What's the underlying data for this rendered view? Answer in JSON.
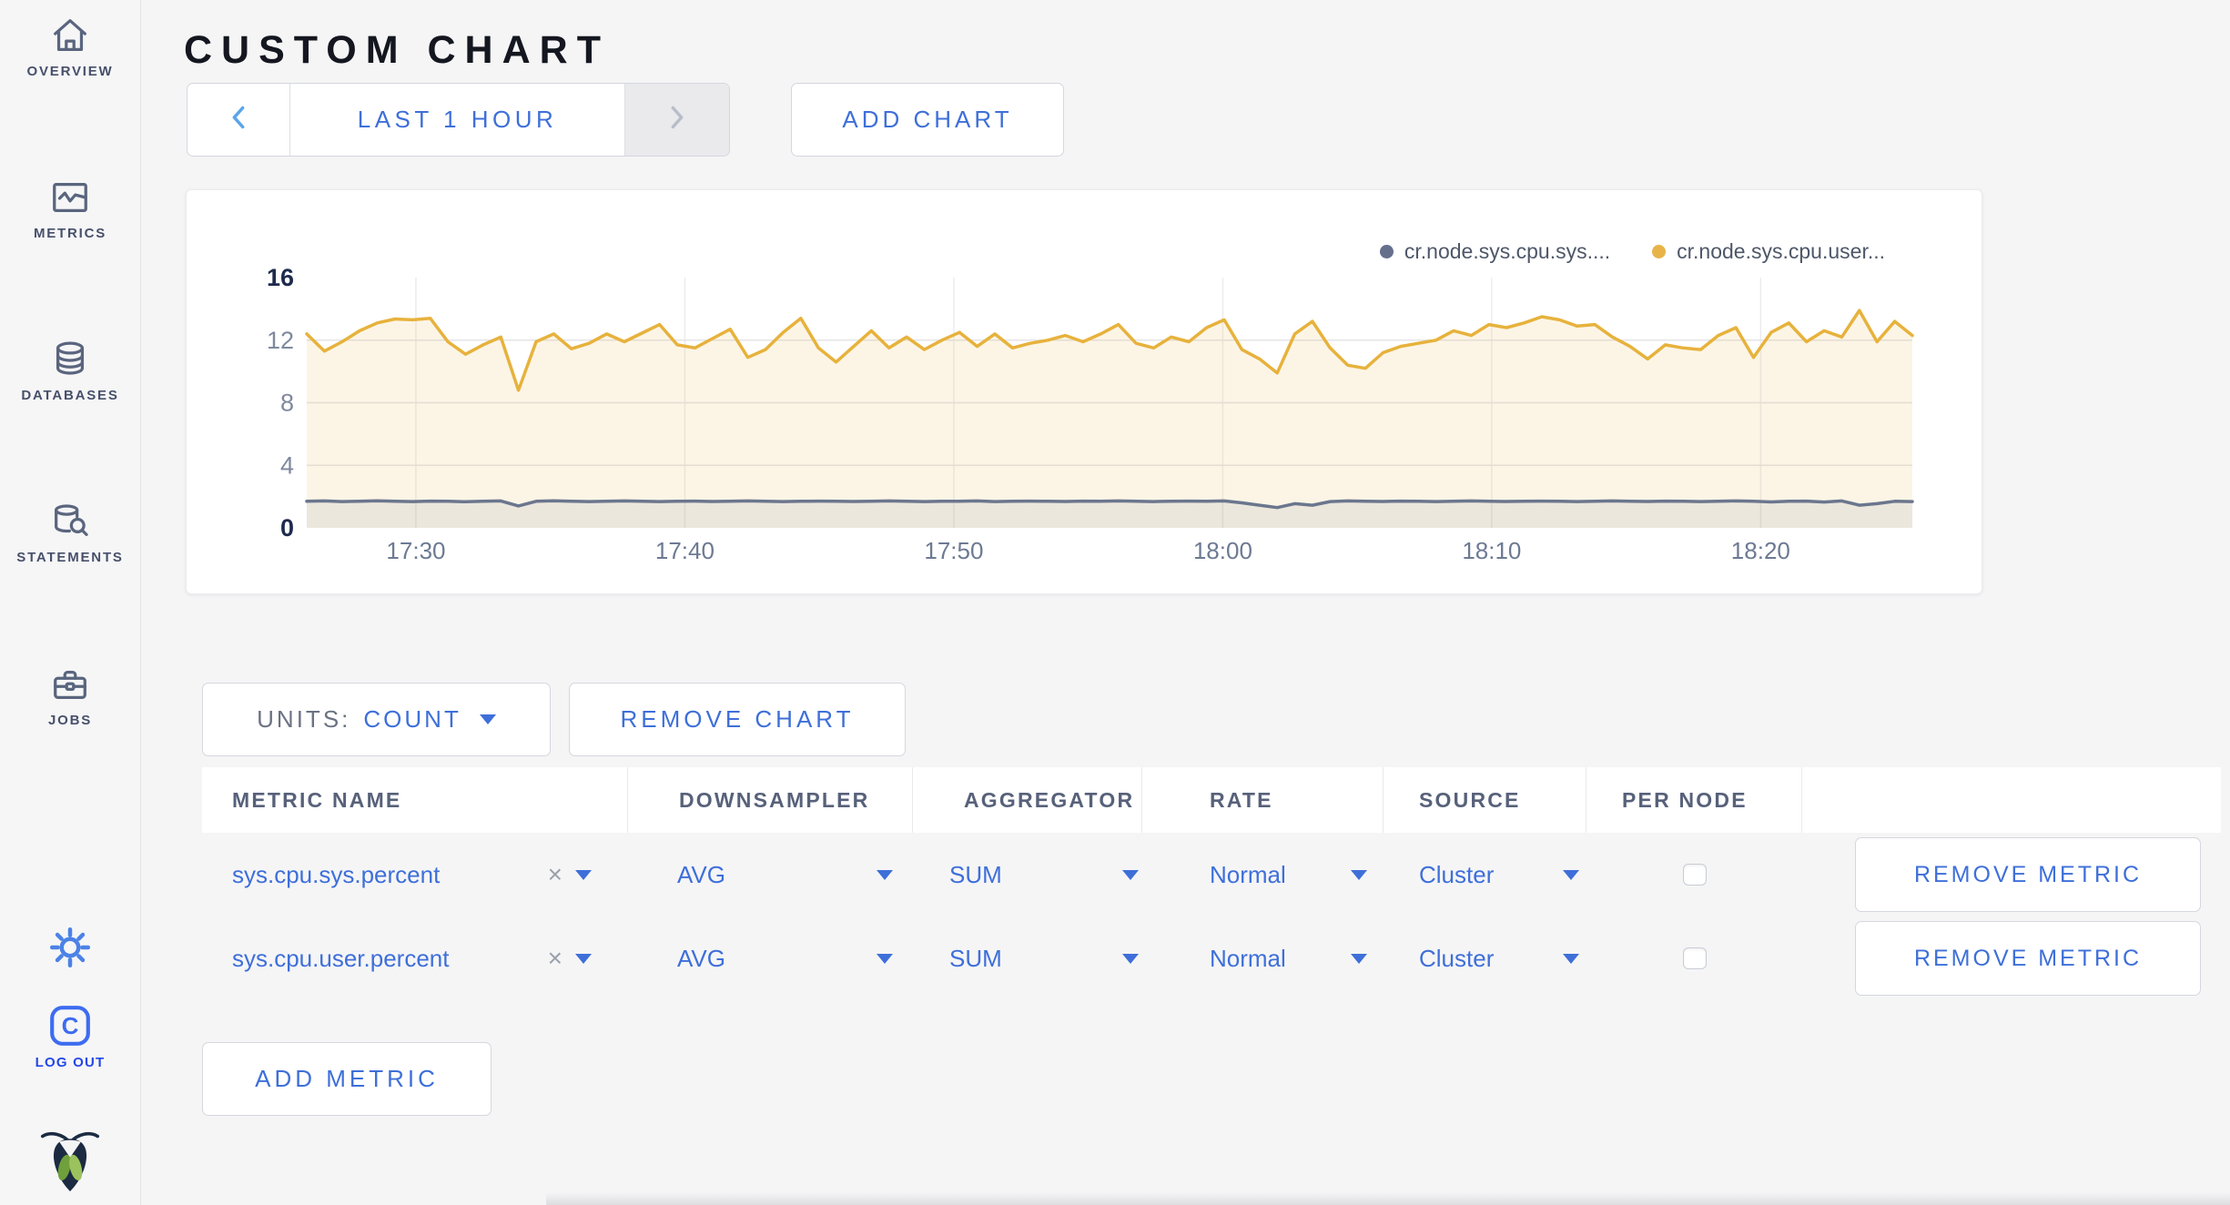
{
  "sidebar": {
    "items": [
      {
        "label": "OVERVIEW",
        "icon": "home-icon"
      },
      {
        "label": "METRICS",
        "icon": "metrics-icon"
      },
      {
        "label": "DATABASES",
        "icon": "database-icon"
      },
      {
        "label": "STATEMENTS",
        "icon": "statements-icon"
      },
      {
        "label": "JOBS",
        "icon": "briefcase-icon"
      }
    ],
    "settings_icon": "gear-icon",
    "logout": {
      "label": "LOG OUT",
      "icon": "cockroach-c-logo"
    },
    "brand_icon": "cockroach-bug-logo"
  },
  "header": {
    "title": "CUSTOM CHART"
  },
  "controls": {
    "time_range_label": "LAST 1 HOUR",
    "add_chart_label": "ADD CHART"
  },
  "units_bar": {
    "units_label": "UNITS:",
    "units_value": "COUNT",
    "remove_chart_label": "REMOVE CHART"
  },
  "table": {
    "headers": [
      "METRIC NAME",
      "DOWNSAMPLER",
      "AGGREGATOR",
      "RATE",
      "SOURCE",
      "PER NODE"
    ],
    "rows": [
      {
        "metric": "sys.cpu.sys.percent",
        "clear": "×",
        "downsampler": "AVG",
        "aggregator": "SUM",
        "rate": "Normal",
        "source": "Cluster",
        "per_node_checked": false,
        "action_label": "REMOVE METRIC"
      },
      {
        "metric": "sys.cpu.user.percent",
        "clear": "×",
        "downsampler": "AVG",
        "aggregator": "SUM",
        "rate": "Normal",
        "source": "Cluster",
        "per_node_checked": false,
        "action_label": "REMOVE METRIC"
      }
    ],
    "add_metric_label": "ADD METRIC"
  },
  "chart_data": {
    "type": "line",
    "title": "",
    "xlabel": "",
    "ylabel": "",
    "ylim": [
      0,
      16
    ],
    "y_ticks": [
      0,
      4,
      8,
      12,
      16
    ],
    "y_strong_ticks": [
      0,
      16
    ],
    "grid": true,
    "legend_position": "top-right",
    "x_duration_min": 59.7,
    "x_tick_minutes": [
      4.06,
      14.06,
      24.06,
      34.06,
      44.06,
      54.06
    ],
    "x_tick_labels": [
      "17:30",
      "17:40",
      "17:50",
      "18:00",
      "18:10",
      "18:20"
    ],
    "legend": [
      {
        "label": "cr.node.sys.cpu.sys....",
        "color": "#66708d"
      },
      {
        "label": "cr.node.sys.cpu.user...",
        "color": "#e8b44a"
      }
    ],
    "series": [
      {
        "name": "cr.node.sys.cpu.sys....",
        "color": "#6b768e",
        "fill": "rgba(100,110,135,0.10)",
        "values": [
          1.7,
          1.72,
          1.68,
          1.7,
          1.73,
          1.7,
          1.68,
          1.71,
          1.7,
          1.67,
          1.7,
          1.72,
          1.4,
          1.7,
          1.73,
          1.7,
          1.68,
          1.7,
          1.72,
          1.7,
          1.68,
          1.7,
          1.71,
          1.69,
          1.7,
          1.72,
          1.7,
          1.68,
          1.7,
          1.71,
          1.7,
          1.69,
          1.7,
          1.72,
          1.7,
          1.68,
          1.7,
          1.7,
          1.72,
          1.68,
          1.7,
          1.71,
          1.7,
          1.69,
          1.71,
          1.7,
          1.72,
          1.7,
          1.68,
          1.7,
          1.71,
          1.7,
          1.72,
          1.6,
          1.45,
          1.3,
          1.55,
          1.45,
          1.68,
          1.72,
          1.7,
          1.69,
          1.71,
          1.7,
          1.68,
          1.7,
          1.72,
          1.7,
          1.69,
          1.7,
          1.71,
          1.7,
          1.68,
          1.7,
          1.72,
          1.7,
          1.69,
          1.71,
          1.7,
          1.68,
          1.7,
          1.72,
          1.7,
          1.66,
          1.7,
          1.71,
          1.65,
          1.72,
          1.45,
          1.55,
          1.7,
          1.68
        ]
      },
      {
        "name": "cr.node.sys.cpu.user...",
        "color": "#e7b23c",
        "fill": "rgba(231,178,62,0.13)",
        "values": [
          12.4,
          11.3,
          11.9,
          12.6,
          13.1,
          13.35,
          13.3,
          13.4,
          11.9,
          11.1,
          11.7,
          12.2,
          8.8,
          11.9,
          12.4,
          11.45,
          11.8,
          12.4,
          11.9,
          12.45,
          13.0,
          11.7,
          11.5,
          12.1,
          12.7,
          10.9,
          11.4,
          12.5,
          13.4,
          11.5,
          10.6,
          11.6,
          12.6,
          11.5,
          12.2,
          11.4,
          12.0,
          12.5,
          11.6,
          12.4,
          11.5,
          11.8,
          12.0,
          12.3,
          11.9,
          12.4,
          13.0,
          11.8,
          11.5,
          12.2,
          11.9,
          12.8,
          13.3,
          11.4,
          10.8,
          9.9,
          12.4,
          13.2,
          11.5,
          10.4,
          10.2,
          11.2,
          11.6,
          11.8,
          12.0,
          12.6,
          12.3,
          13.0,
          12.8,
          13.1,
          13.5,
          13.3,
          12.9,
          13.0,
          12.2,
          11.6,
          10.8,
          11.7,
          11.5,
          11.4,
          12.3,
          12.8,
          10.9,
          12.5,
          13.1,
          11.9,
          12.6,
          12.2,
          13.9,
          11.9,
          13.2,
          12.3
        ]
      }
    ]
  }
}
